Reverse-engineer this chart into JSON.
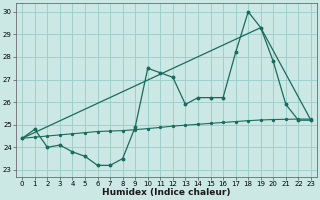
{
  "xlabel": "Humidex (Indice chaleur)",
  "bg_color": "#cce8e4",
  "grid_color": "#99ccc8",
  "line_color": "#1a6b5e",
  "xlim": [
    -0.5,
    23.5
  ],
  "ylim": [
    22.7,
    30.4
  ],
  "xticks": [
    0,
    1,
    2,
    3,
    4,
    5,
    6,
    7,
    8,
    9,
    10,
    11,
    12,
    13,
    14,
    15,
    16,
    17,
    18,
    19,
    20,
    21,
    22,
    23
  ],
  "yticks": [
    23,
    24,
    25,
    26,
    27,
    28,
    29,
    30
  ],
  "series1_x": [
    0,
    1,
    2,
    3,
    4,
    5,
    6,
    7,
    8,
    9,
    10,
    11,
    12,
    13,
    14,
    15,
    16,
    17,
    18,
    19,
    20,
    21,
    22,
    23
  ],
  "series1_y": [
    24.4,
    24.8,
    24.0,
    24.1,
    23.8,
    23.6,
    23.2,
    23.2,
    23.5,
    24.9,
    27.5,
    27.3,
    27.1,
    25.9,
    26.2,
    26.2,
    26.2,
    28.2,
    30.0,
    29.3,
    27.8,
    25.9,
    25.2,
    25.2
  ],
  "series2_x": [
    0,
    1,
    2,
    3,
    4,
    5,
    6,
    7,
    8,
    9,
    10,
    11,
    12,
    13,
    14,
    15,
    16,
    17,
    18,
    19,
    20,
    21,
    22,
    23
  ],
  "series2_y": [
    24.4,
    24.45,
    24.5,
    24.55,
    24.6,
    24.65,
    24.7,
    24.72,
    24.74,
    24.78,
    24.83,
    24.88,
    24.94,
    24.98,
    25.02,
    25.06,
    25.1,
    25.14,
    25.18,
    25.21,
    25.23,
    25.24,
    25.25,
    25.25
  ],
  "series3_x": [
    0,
    19,
    23
  ],
  "series3_y": [
    24.4,
    29.3,
    25.2
  ],
  "tick_labelsize": 5.0,
  "xlabel_fontsize": 6.5
}
